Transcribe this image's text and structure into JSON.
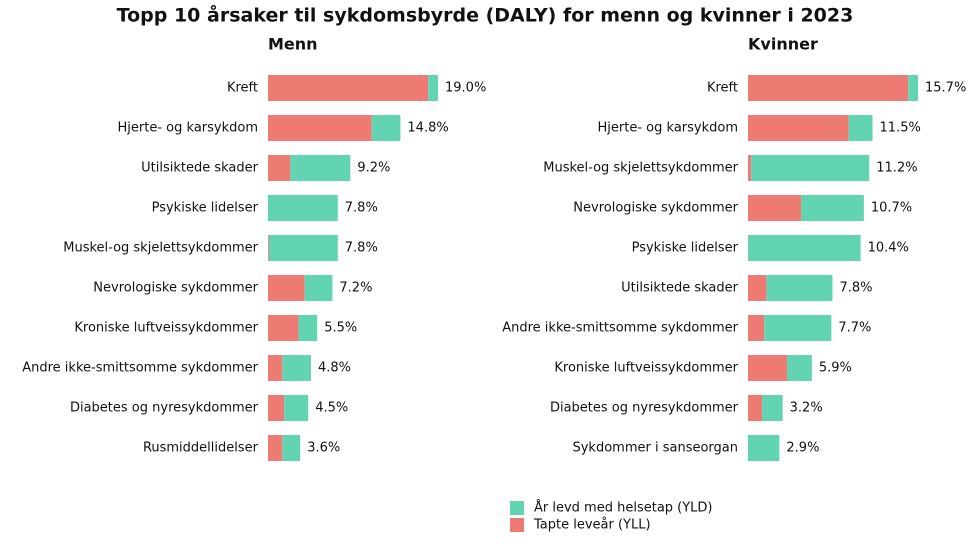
{
  "title": "Topp 10 årsaker til sykdomsbyrde (DALY) for menn og kvinner i 2023",
  "chart_data": [
    {
      "type": "stacked-barh",
      "subtitle": "Menn",
      "categories": [
        "Kreft",
        "Hjerte- og karsykdom",
        "Utilsiktede skader",
        "Psykiske lidelser",
        "Muskel-og skjelettsykdommer",
        "Nevrologiske sykdommer",
        "Kroniske luftveissykdommer",
        "Andre ikke-smittsomme sykdommer",
        "Diabetes og nyresykdommer",
        "Rusmiddellidelser"
      ],
      "series": [
        {
          "name": "År levd med helsetap (YLD)",
          "color": "#62d4b2",
          "values": [
            1.1,
            3.2,
            6.7,
            7.8,
            7.7,
            3.1,
            2.1,
            3.2,
            2.7,
            2.0
          ]
        },
        {
          "name": "Tapte leveår (YLL)",
          "color": "#ee7b73",
          "values": [
            17.9,
            11.6,
            2.5,
            0,
            0.1,
            4.1,
            3.4,
            1.6,
            1.8,
            1.6
          ]
        }
      ],
      "totals": [
        19.0,
        14.8,
        9.2,
        7.8,
        7.8,
        7.2,
        5.5,
        4.8,
        4.5,
        3.6
      ],
      "total_labels": [
        "19.0%",
        "14.8%",
        "9.2%",
        "7.8%",
        "7.8%",
        "7.2%",
        "5.5%",
        "4.8%",
        "4.5%",
        "3.6%"
      ]
    },
    {
      "type": "stacked-barh",
      "subtitle": "Kvinner",
      "categories": [
        "Kreft",
        "Hjerte- og karsykdom",
        "Muskel-og skjelettsykdommer",
        "Nevrologiske sykdommer",
        "Psykiske lidelser",
        "Utilsiktede skader",
        "Andre ikke-smittsomme sykdommer",
        "Kroniske luftveissykdommer",
        "Diabetes og nyresykdommer",
        "Sykdommer i sanseorgan"
      ],
      "series": [
        {
          "name": "År levd med helsetap (YLD)",
          "color": "#62d4b2",
          "values": [
            0.9,
            2.2,
            10.9,
            5.8,
            10.4,
            6.1,
            6.2,
            2.3,
            1.9,
            2.9
          ]
        },
        {
          "name": "Tapte leveår (YLL)",
          "color": "#ee7b73",
          "values": [
            14.8,
            9.3,
            0.3,
            4.9,
            0,
            1.7,
            1.5,
            3.6,
            1.3,
            0
          ]
        }
      ],
      "totals": [
        15.7,
        11.5,
        11.2,
        10.7,
        10.4,
        7.8,
        7.7,
        5.9,
        3.2,
        2.9
      ],
      "total_labels": [
        "15.7%",
        "11.5%",
        "11.2%",
        "10.7%",
        "10.4%",
        "7.8%",
        "7.7%",
        "5.9%",
        "3.2%",
        "2.9%"
      ]
    }
  ]
}
